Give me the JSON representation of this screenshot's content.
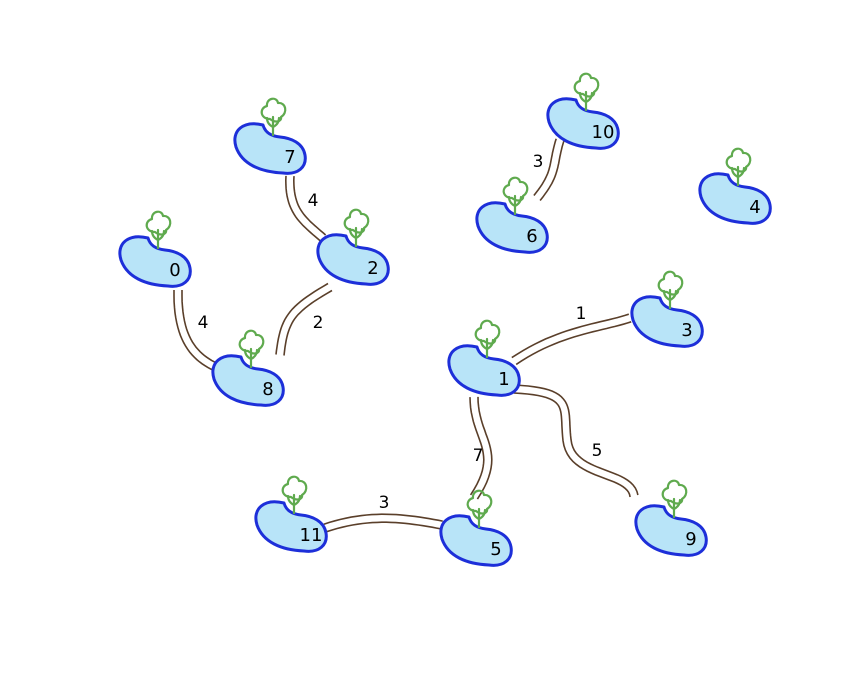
{
  "colors": {
    "island_fill": "#b8e4f8",
    "island_stroke": "#1d2fd9",
    "tree": "#5faa4e",
    "bridge": "#5a3f2a"
  },
  "icons": {
    "island": "island-icon",
    "tree": "tree-icon"
  },
  "nodes": [
    {
      "id": "0",
      "label": "0"
    },
    {
      "id": "1",
      "label": "1"
    },
    {
      "id": "2",
      "label": "2"
    },
    {
      "id": "3",
      "label": "3"
    },
    {
      "id": "4",
      "label": "4"
    },
    {
      "id": "5",
      "label": "5"
    },
    {
      "id": "6",
      "label": "6"
    },
    {
      "id": "7",
      "label": "7"
    },
    {
      "id": "8",
      "label": "8"
    },
    {
      "id": "9",
      "label": "9"
    },
    {
      "id": "10",
      "label": "10"
    },
    {
      "id": "11",
      "label": "11"
    }
  ],
  "edges": [
    {
      "from": "7",
      "to": "2",
      "weight": "4"
    },
    {
      "from": "0",
      "to": "8",
      "weight": "4"
    },
    {
      "from": "2",
      "to": "8",
      "weight": "2"
    },
    {
      "from": "10",
      "to": "6",
      "weight": "3"
    },
    {
      "from": "1",
      "to": "3",
      "weight": "1"
    },
    {
      "from": "1",
      "to": "5",
      "weight": "7"
    },
    {
      "from": "1",
      "to": "9",
      "weight": "5"
    },
    {
      "from": "11",
      "to": "5",
      "weight": "3"
    }
  ]
}
